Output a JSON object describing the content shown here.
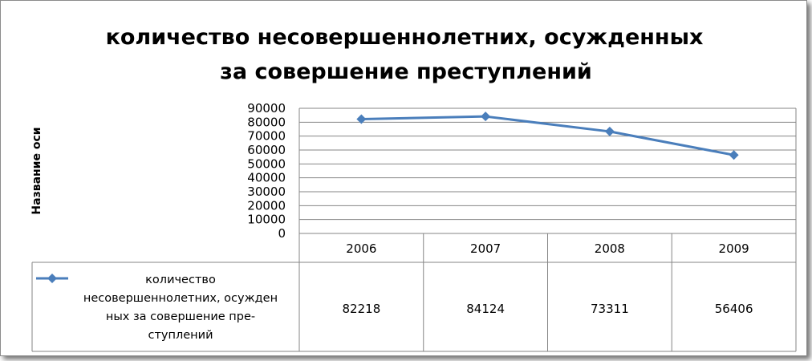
{
  "chart_data": {
    "type": "line",
    "title_lines": [
      "количество несовершеннолетних, осужденных",
      "за совершение преступлений"
    ],
    "ylabel": "Название оси",
    "xlabel": "",
    "categories": [
      "2006",
      "2007",
      "2008",
      "2009"
    ],
    "ylim": [
      0,
      90000
    ],
    "yticks": [
      "0",
      "10000",
      "20000",
      "30000",
      "40000",
      "50000",
      "60000",
      "70000",
      "80000",
      "90000"
    ],
    "grid": true,
    "legend": "data-table",
    "series": [
      {
        "name_lines": [
          "количество",
          "несовершеннолетних, осужден",
          "ных за совершение пре-",
          "ступлений"
        ],
        "values": [
          82218,
          84124,
          73311,
          56406
        ],
        "value_labels": [
          "82218",
          "84124",
          "73311",
          "56406"
        ],
        "color": "#4a7ebb",
        "marker": "diamond"
      }
    ],
    "gridline_color": "#868686",
    "table_border_color": "#868686"
  }
}
